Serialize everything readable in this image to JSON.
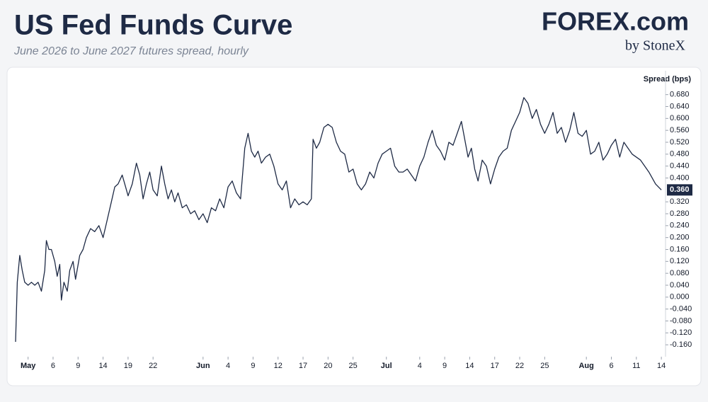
{
  "chart_data": {
    "type": "line",
    "title": "US Fed Funds Curve",
    "subtitle": "June 2026 to June 2027 futures spread, hourly",
    "brand": "FOREX.com",
    "brand_sub": "by StoneX",
    "y_label": "Spread (bps)",
    "color": "#1e2a45",
    "xlim": [
      -1.5,
      76.5
    ],
    "ylim": [
      -0.2,
      0.76
    ],
    "xticks": [
      {
        "value": 0,
        "label": "May"
      },
      {
        "value": 3,
        "label": "6"
      },
      {
        "value": 6,
        "label": "9"
      },
      {
        "value": 9,
        "label": "14"
      },
      {
        "value": 12,
        "label": "19"
      },
      {
        "value": 15,
        "label": "22"
      },
      {
        "value": 21,
        "label": "Jun"
      },
      {
        "value": 24,
        "label": "4"
      },
      {
        "value": 27,
        "label": "9"
      },
      {
        "value": 30,
        "label": "12"
      },
      {
        "value": 33,
        "label": "17"
      },
      {
        "value": 36,
        "label": "20"
      },
      {
        "value": 39,
        "label": "25"
      },
      {
        "value": 43,
        "label": "Jul"
      },
      {
        "value": 47,
        "label": "4"
      },
      {
        "value": 50,
        "label": "9"
      },
      {
        "value": 53,
        "label": "14"
      },
      {
        "value": 56,
        "label": "17"
      },
      {
        "value": 59,
        "label": "22"
      },
      {
        "value": 62,
        "label": "25"
      },
      {
        "value": 67,
        "label": "Aug"
      },
      {
        "value": 70,
        "label": "6"
      },
      {
        "value": 73,
        "label": "11"
      },
      {
        "value": 76,
        "label": "14"
      }
    ],
    "month_ticks": [
      "May",
      "Jun",
      "Jul",
      "Aug"
    ],
    "yticks": [
      {
        "value": -0.16,
        "label": "-0.160"
      },
      {
        "value": -0.12,
        "label": "-0.120"
      },
      {
        "value": -0.08,
        "label": "-0.080"
      },
      {
        "value": -0.04,
        "label": "-0.040"
      },
      {
        "value": 0,
        "label": "0.000"
      },
      {
        "value": 0.04,
        "label": "0.040"
      },
      {
        "value": 0.08,
        "label": "0.080"
      },
      {
        "value": 0.12,
        "label": "0.120"
      },
      {
        "value": 0.16,
        "label": "0.160"
      },
      {
        "value": 0.2,
        "label": "0.200"
      },
      {
        "value": 0.24,
        "label": "0.240"
      },
      {
        "value": 0.28,
        "label": "0.280"
      },
      {
        "value": 0.32,
        "label": "0.320"
      },
      {
        "value": 0.4,
        "label": "0.400"
      },
      {
        "value": 0.44,
        "label": "0.440"
      },
      {
        "value": 0.48,
        "label": "0.480"
      },
      {
        "value": 0.52,
        "label": "0.520"
      },
      {
        "value": 0.56,
        "label": "0.560"
      },
      {
        "value": 0.6,
        "label": "0.600"
      },
      {
        "value": 0.64,
        "label": "0.640"
      },
      {
        "value": 0.68,
        "label": "0.680"
      }
    ],
    "current": {
      "value": 0.36,
      "label": "0.360"
    },
    "x": [
      -1.5,
      -1.3,
      -1.0,
      -0.7,
      -0.4,
      0.0,
      0.4,
      0.8,
      1.2,
      1.6,
      2.0,
      2.2,
      2.5,
      2.8,
      3.2,
      3.5,
      3.8,
      4.0,
      4.3,
      4.7,
      5.0,
      5.4,
      5.7,
      6.2,
      6.6,
      7.0,
      7.5,
      8.0,
      8.5,
      9.0,
      9.5,
      10.0,
      10.4,
      10.8,
      11.3,
      11.7,
      12.0,
      12.5,
      13.0,
      13.4,
      13.8,
      14.2,
      14.6,
      15.0,
      15.5,
      16.0,
      16.4,
      16.8,
      17.2,
      17.6,
      18.0,
      18.5,
      19.0,
      19.5,
      20.0,
      20.5,
      21.0,
      21.5,
      22.0,
      22.5,
      23.0,
      23.5,
      24.0,
      24.5,
      25.0,
      25.5,
      26.0,
      26.4,
      26.8,
      27.2,
      27.6,
      28.0,
      28.5,
      29.0,
      29.5,
      30.0,
      30.5,
      31.0,
      31.5,
      32.0,
      32.5,
      33.0,
      33.5,
      34.0,
      34.2,
      34.6,
      35.0,
      35.5,
      36.0,
      36.5,
      37.0,
      37.5,
      38.0,
      38.5,
      39.0,
      39.5,
      40.0,
      40.5,
      41.0,
      41.5,
      42.0,
      42.5,
      43.0,
      43.5,
      44.0,
      44.5,
      45.0,
      45.5,
      46.0,
      46.5,
      47.0,
      47.5,
      48.0,
      48.5,
      49.0,
      49.5,
      50.0,
      50.5,
      51.0,
      51.5,
      52.0,
      52.4,
      52.8,
      53.2,
      53.6,
      54.0,
      54.5,
      55.0,
      55.5,
      56.0,
      56.5,
      57.0,
      57.5,
      58.0,
      58.5,
      59.0,
      59.5,
      60.0,
      60.5,
      61.0,
      61.5,
      62.0,
      62.5,
      63.0,
      63.5,
      64.0,
      64.5,
      65.0,
      65.5,
      66.0,
      66.5,
      67.0,
      67.5,
      68.0,
      68.5,
      69.0,
      69.5,
      70.0,
      70.5,
      71.0,
      71.5,
      72.0,
      72.5,
      73.5,
      74.5,
      75.3,
      76.0
    ],
    "values": [
      -0.15,
      0.05,
      0.14,
      0.09,
      0.05,
      0.04,
      0.05,
      0.04,
      0.05,
      0.02,
      0.09,
      0.19,
      0.16,
      0.16,
      0.12,
      0.07,
      0.11,
      -0.01,
      0.05,
      0.02,
      0.09,
      0.12,
      0.06,
      0.14,
      0.16,
      0.2,
      0.23,
      0.22,
      0.24,
      0.2,
      0.26,
      0.32,
      0.37,
      0.38,
      0.41,
      0.37,
      0.34,
      0.38,
      0.45,
      0.41,
      0.33,
      0.38,
      0.42,
      0.36,
      0.34,
      0.44,
      0.38,
      0.33,
      0.36,
      0.32,
      0.35,
      0.3,
      0.31,
      0.28,
      0.29,
      0.26,
      0.28,
      0.25,
      0.3,
      0.29,
      0.33,
      0.3,
      0.37,
      0.39,
      0.35,
      0.33,
      0.5,
      0.55,
      0.49,
      0.47,
      0.49,
      0.45,
      0.47,
      0.48,
      0.44,
      0.38,
      0.36,
      0.39,
      0.3,
      0.33,
      0.31,
      0.32,
      0.31,
      0.33,
      0.53,
      0.5,
      0.52,
      0.57,
      0.58,
      0.57,
      0.52,
      0.49,
      0.48,
      0.42,
      0.43,
      0.38,
      0.36,
      0.38,
      0.42,
      0.4,
      0.45,
      0.48,
      0.49,
      0.5,
      0.44,
      0.42,
      0.42,
      0.43,
      0.41,
      0.39,
      0.44,
      0.47,
      0.52,
      0.56,
      0.51,
      0.49,
      0.46,
      0.52,
      0.51,
      0.55,
      0.59,
      0.53,
      0.47,
      0.5,
      0.43,
      0.39,
      0.46,
      0.44,
      0.38,
      0.43,
      0.47,
      0.49,
      0.5,
      0.56,
      0.59,
      0.62,
      0.67,
      0.65,
      0.6,
      0.63,
      0.58,
      0.55,
      0.58,
      0.62,
      0.55,
      0.57,
      0.52,
      0.56,
      0.62,
      0.55,
      0.54,
      0.56,
      0.48,
      0.49,
      0.52,
      0.46,
      0.48,
      0.51,
      0.53,
      0.47,
      0.52,
      0.5,
      0.48,
      0.46,
      0.42,
      0.38,
      0.36
    ]
  }
}
